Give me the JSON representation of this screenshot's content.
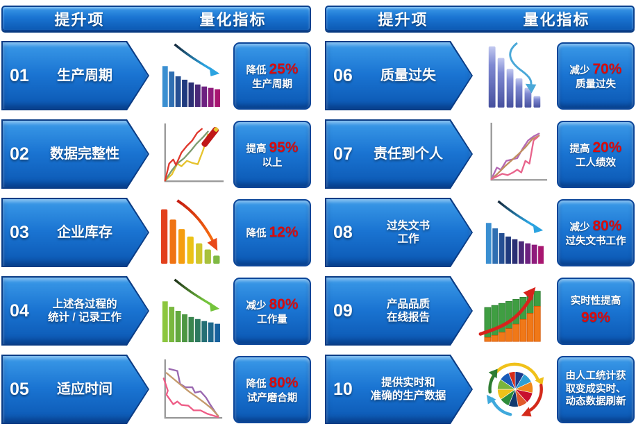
{
  "colors": {
    "accent_red": "#dc0a0a",
    "banner_blue_top": "#3b9ae8",
    "banner_blue_bottom": "#0b57b2",
    "banner_border": "#0a3c85"
  },
  "columns": [
    {
      "header": {
        "item_label": "提升项",
        "metric_label": "量化指标"
      },
      "rows": [
        {
          "number": "01",
          "title_lines": [
            "生产周期"
          ],
          "chart_icon": "declining-bars-blue-chart",
          "result_lines": [
            [
              {
                "t": "降低 "
              },
              {
                "t": "25%",
                "accent": true
              }
            ],
            [
              {
                "t": "生产周期"
              }
            ]
          ]
        },
        {
          "number": "02",
          "title_lines": [
            "数据完整性"
          ],
          "chart_icon": "rising-lines-marker-chart",
          "result_lines": [
            [
              {
                "t": "提高 "
              },
              {
                "t": "95%",
                "accent": true
              }
            ],
            [
              {
                "t": "以上"
              }
            ]
          ]
        },
        {
          "number": "03",
          "title_lines": [
            "企业库存"
          ],
          "chart_icon": "declining-bars-orange-chart",
          "result_lines": [
            [
              {
                "t": "降低 "
              },
              {
                "t": "12%",
                "accent": true
              }
            ]
          ]
        },
        {
          "number": "04",
          "title_lines": [
            "上述各过程的",
            "统计 / 记录工作"
          ],
          "chart_icon": "declining-bars-green-chart",
          "result_lines": [
            [
              {
                "t": "减少 "
              },
              {
                "t": "80%",
                "accent": true
              }
            ],
            [
              {
                "t": "工作量"
              }
            ]
          ]
        },
        {
          "number": "05",
          "title_lines": [
            "适应时间"
          ],
          "chart_icon": "falling-lines-chart",
          "result_lines": [
            [
              {
                "t": "降低 "
              },
              {
                "t": "80%",
                "accent": true
              }
            ],
            [
              {
                "t": "试产磨合期"
              }
            ]
          ]
        }
      ]
    },
    {
      "header": {
        "item_label": "提升项",
        "metric_label": "量化指标"
      },
      "rows": [
        {
          "number": "06",
          "title_lines": [
            "质量过失"
          ],
          "chart_icon": "declining-bars-indigo-chart",
          "result_lines": [
            [
              {
                "t": "减少 "
              },
              {
                "t": "70%",
                "accent": true
              }
            ],
            [
              {
                "t": "质量过失"
              }
            ]
          ]
        },
        {
          "number": "07",
          "title_lines": [
            "责任到个人"
          ],
          "chart_icon": "rising-lines-chart",
          "result_lines": [
            [
              {
                "t": "提高 "
              },
              {
                "t": "20%",
                "accent": true
              }
            ],
            [
              {
                "t": "工人绩效"
              }
            ]
          ]
        },
        {
          "number": "08",
          "title_lines": [
            "过失文书",
            "工作"
          ],
          "chart_icon": "declining-bars-blue-chart",
          "result_lines": [
            [
              {
                "t": "减少 "
              },
              {
                "t": "80%",
                "accent": true
              }
            ],
            [
              {
                "t": "过失文书工作"
              }
            ]
          ]
        },
        {
          "number": "09",
          "title_lines": [
            "产品品质",
            "在线报告"
          ],
          "chart_icon": "rising-striped-bars-chart",
          "result_lines": [
            [
              {
                "t": "实时性提高"
              }
            ],
            [
              {
                "t": "99%",
                "accent": true
              }
            ]
          ]
        },
        {
          "number": "10",
          "title_lines": [
            "提供实时和",
            "准确的生产数据"
          ],
          "chart_icon": "pie-cycle-arrows-chart",
          "result_lines": [
            [
              {
                "t": "由人工统计获"
              }
            ],
            [
              {
                "t": "取变成实时、"
              }
            ],
            [
              {
                "t": "动态数据刷新"
              }
            ]
          ]
        }
      ]
    }
  ]
}
